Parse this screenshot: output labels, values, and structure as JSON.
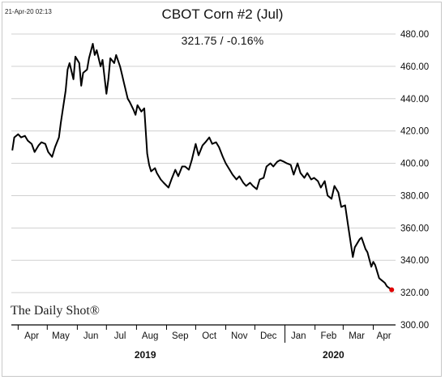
{
  "timestamp": "21-Apr-20 02:13",
  "title": "CBOT Corn #2 (Jul)",
  "subtitle": "321.75  /  -0.16%",
  "logo": "The Daily Shot®",
  "chart_data": {
    "type": "line",
    "title": "CBOT Corn #2 (Jul)",
    "subtitle": "321.75  /  -0.16%",
    "xlabel": "",
    "ylabel": "",
    "ylim": [
      300,
      480
    ],
    "yticks": [
      "300.00",
      "320.00",
      "340.00",
      "360.00",
      "380.00",
      "400.00",
      "420.00",
      "440.00",
      "460.00",
      "480.00"
    ],
    "yaxis_position": "right",
    "grid": "horizontal",
    "xlim": [
      "2019-03-25",
      "2020-04-24"
    ],
    "month_labels": [
      {
        "label": "Apr",
        "x": "2019-04-15"
      },
      {
        "label": "May",
        "x": "2019-05-15"
      },
      {
        "label": "Jun",
        "x": "2019-06-15"
      },
      {
        "label": "Jul",
        "x": "2019-07-15"
      },
      {
        "label": "Aug",
        "x": "2019-08-15"
      },
      {
        "label": "Sep",
        "x": "2019-09-15"
      },
      {
        "label": "Oct",
        "x": "2019-10-15"
      },
      {
        "label": "Nov",
        "x": "2019-11-15"
      },
      {
        "label": "Dec",
        "x": "2019-12-15"
      },
      {
        "label": "Jan",
        "x": "2020-01-15"
      },
      {
        "label": "Feb",
        "x": "2020-02-15"
      },
      {
        "label": "Mar",
        "x": "2020-03-15"
      },
      {
        "label": "Apr",
        "x": "2020-04-12"
      }
    ],
    "year_labels": [
      {
        "label": "2019",
        "x": "2019-08-10"
      },
      {
        "label": "2020",
        "x": "2020-02-20"
      }
    ],
    "series": [
      {
        "color": "#000000",
        "points": [
          [
            "2019-03-26",
            408
          ],
          [
            "2019-03-28",
            416
          ],
          [
            "2019-04-01",
            418
          ],
          [
            "2019-04-04",
            416
          ],
          [
            "2019-04-08",
            417
          ],
          [
            "2019-04-11",
            414
          ],
          [
            "2019-04-15",
            412
          ],
          [
            "2019-04-18",
            407
          ],
          [
            "2019-04-22",
            411
          ],
          [
            "2019-04-25",
            413
          ],
          [
            "2019-04-29",
            412
          ],
          [
            "2019-05-02",
            407
          ],
          [
            "2019-05-06",
            404
          ],
          [
            "2019-05-09",
            410
          ],
          [
            "2019-05-13",
            416
          ],
          [
            "2019-05-15",
            425
          ],
          [
            "2019-05-17",
            433
          ],
          [
            "2019-05-20",
            445
          ],
          [
            "2019-05-22",
            458
          ],
          [
            "2019-05-24",
            462
          ],
          [
            "2019-05-28",
            452
          ],
          [
            "2019-05-30",
            466
          ],
          [
            "2019-06-03",
            462
          ],
          [
            "2019-06-05",
            448
          ],
          [
            "2019-06-07",
            456
          ],
          [
            "2019-06-11",
            458
          ],
          [
            "2019-06-13",
            465
          ],
          [
            "2019-06-17",
            474
          ],
          [
            "2019-06-19",
            467
          ],
          [
            "2019-06-21",
            470
          ],
          [
            "2019-06-25",
            460
          ],
          [
            "2019-06-27",
            464
          ],
          [
            "2019-07-01",
            443
          ],
          [
            "2019-07-03",
            452
          ],
          [
            "2019-07-05",
            465
          ],
          [
            "2019-07-09",
            462
          ],
          [
            "2019-07-11",
            467
          ],
          [
            "2019-07-15",
            460
          ],
          [
            "2019-07-17",
            455
          ],
          [
            "2019-07-19",
            450
          ],
          [
            "2019-07-23",
            440
          ],
          [
            "2019-07-25",
            438
          ],
          [
            "2019-07-29",
            433
          ],
          [
            "2019-07-31",
            430
          ],
          [
            "2019-08-02",
            436
          ],
          [
            "2019-08-06",
            432
          ],
          [
            "2019-08-09",
            434
          ],
          [
            "2019-08-12",
            406
          ],
          [
            "2019-08-14",
            399
          ],
          [
            "2019-08-16",
            395
          ],
          [
            "2019-08-20",
            397
          ],
          [
            "2019-08-22",
            394
          ],
          [
            "2019-08-26",
            390
          ],
          [
            "2019-08-29",
            388
          ],
          [
            "2019-09-03",
            385
          ],
          [
            "2019-09-06",
            390
          ],
          [
            "2019-09-10",
            396
          ],
          [
            "2019-09-13",
            392
          ],
          [
            "2019-09-17",
            398
          ],
          [
            "2019-09-20",
            398
          ],
          [
            "2019-09-24",
            396
          ],
          [
            "2019-09-27",
            402
          ],
          [
            "2019-10-01",
            412
          ],
          [
            "2019-10-04",
            405
          ],
          [
            "2019-10-08",
            411
          ],
          [
            "2019-10-11",
            413
          ],
          [
            "2019-10-15",
            416
          ],
          [
            "2019-10-18",
            412
          ],
          [
            "2019-10-22",
            413
          ],
          [
            "2019-10-25",
            410
          ],
          [
            "2019-10-29",
            404
          ],
          [
            "2019-11-01",
            400
          ],
          [
            "2019-11-05",
            396
          ],
          [
            "2019-11-08",
            393
          ],
          [
            "2019-11-12",
            390
          ],
          [
            "2019-11-15",
            392
          ],
          [
            "2019-11-19",
            388
          ],
          [
            "2019-11-22",
            386
          ],
          [
            "2019-11-26",
            388
          ],
          [
            "2019-11-29",
            386
          ],
          [
            "2019-12-03",
            384
          ],
          [
            "2019-12-06",
            390
          ],
          [
            "2019-12-10",
            391
          ],
          [
            "2019-12-13",
            398
          ],
          [
            "2019-12-17",
            400
          ],
          [
            "2019-12-20",
            398
          ],
          [
            "2019-12-24",
            401
          ],
          [
            "2019-12-27",
            402
          ],
          [
            "2019-12-31",
            401
          ],
          [
            "2020-01-03",
            400
          ],
          [
            "2020-01-07",
            399
          ],
          [
            "2020-01-10",
            393
          ],
          [
            "2020-01-14",
            400
          ],
          [
            "2020-01-17",
            394
          ],
          [
            "2020-01-21",
            391
          ],
          [
            "2020-01-24",
            394
          ],
          [
            "2020-01-28",
            390
          ],
          [
            "2020-01-31",
            391
          ],
          [
            "2020-02-04",
            389
          ],
          [
            "2020-02-07",
            385
          ],
          [
            "2020-02-11",
            389
          ],
          [
            "2020-02-14",
            380
          ],
          [
            "2020-02-18",
            378
          ],
          [
            "2020-02-21",
            386
          ],
          [
            "2020-02-25",
            382
          ],
          [
            "2020-02-28",
            373
          ],
          [
            "2020-03-03",
            374
          ],
          [
            "2020-03-06",
            362
          ],
          [
            "2020-03-09",
            350
          ],
          [
            "2020-03-11",
            342
          ],
          [
            "2020-03-13",
            348
          ],
          [
            "2020-03-16",
            351
          ],
          [
            "2020-03-18",
            353
          ],
          [
            "2020-03-20",
            354
          ],
          [
            "2020-03-24",
            347
          ],
          [
            "2020-03-26",
            345
          ],
          [
            "2020-03-30",
            336
          ],
          [
            "2020-04-01",
            339
          ],
          [
            "2020-04-03",
            337
          ],
          [
            "2020-04-07",
            329
          ],
          [
            "2020-04-09",
            328
          ],
          [
            "2020-04-13",
            326
          ],
          [
            "2020-04-15",
            324
          ],
          [
            "2020-04-17",
            323
          ],
          [
            "2020-04-20",
            321.75
          ]
        ]
      }
    ],
    "last_point_marker_color": "#e00000"
  }
}
